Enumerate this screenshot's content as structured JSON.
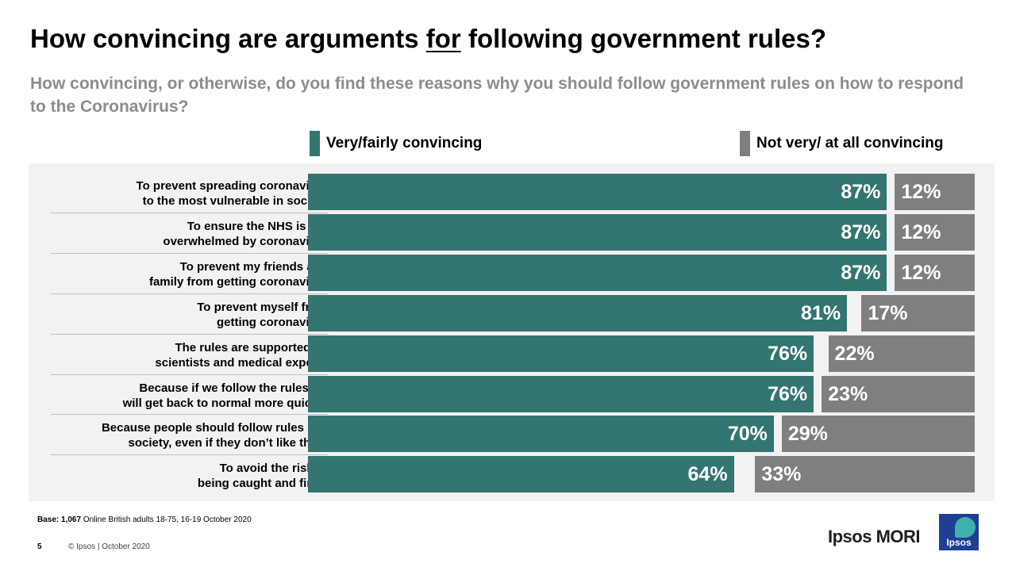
{
  "header": {
    "title_before": "How convincing are arguments",
    "title_underlined": "for",
    "title_after": "following government rules?",
    "subtitle": "How convincing, or otherwise, do you find these reasons why you should follow government rules on how to respond to the Coronavirus?"
  },
  "legend": {
    "positive": {
      "label": "Very/fairly  convincing",
      "color": "#337570"
    },
    "negative": {
      "label": "Not very/ at all convincing",
      "color": "#7f7f7f"
    }
  },
  "chart_data": {
    "type": "bar",
    "orientation": "horizontal",
    "stacked": true,
    "unit": "%",
    "xlim": [
      0,
      100
    ],
    "categories": [
      [
        "To prevent spreading coronavirus",
        "to the most vulnerable in society"
      ],
      [
        "To ensure the NHS is not",
        "overwhelmed by coronavirus"
      ],
      [
        "To prevent my friends and",
        "family from getting coronavirus"
      ],
      [
        "To prevent myself from",
        "getting coronavirus"
      ],
      [
        "The rules are supported by",
        "scientists and medical experts"
      ],
      [
        "Because if we follow the rules we",
        "will get back to normal more quickly"
      ],
      [
        "Because people should follow rules in a",
        "society, even if they don’t like them"
      ],
      [
        "To avoid the risk of",
        "being caught and fined"
      ]
    ],
    "series": [
      {
        "name": "Very/fairly  convincing",
        "color": "#337570",
        "values": [
          87,
          87,
          87,
          81,
          76,
          76,
          70,
          64
        ],
        "labels": [
          "87%",
          "87%",
          "87%",
          "81%",
          "76%",
          "76%",
          "70%",
          "64%"
        ]
      },
      {
        "name": "Not very/ at all convincing",
        "color": "#7f7f7f",
        "values": [
          12,
          12,
          12,
          17,
          22,
          23,
          29,
          33
        ],
        "labels": [
          "12%",
          "12%",
          "12%",
          "17%",
          "22%",
          "23%",
          "29%",
          "33%"
        ]
      }
    ]
  },
  "footer": {
    "base_label": "Base:",
    "base_count": "1,067",
    "base_text": " Online British adults 18-75, 16-19 October 2020",
    "page_number": "5",
    "copyright": "© Ipsos | October 2020",
    "brand_name": "Ipsos MORI",
    "logo_word": "Ipsos"
  }
}
